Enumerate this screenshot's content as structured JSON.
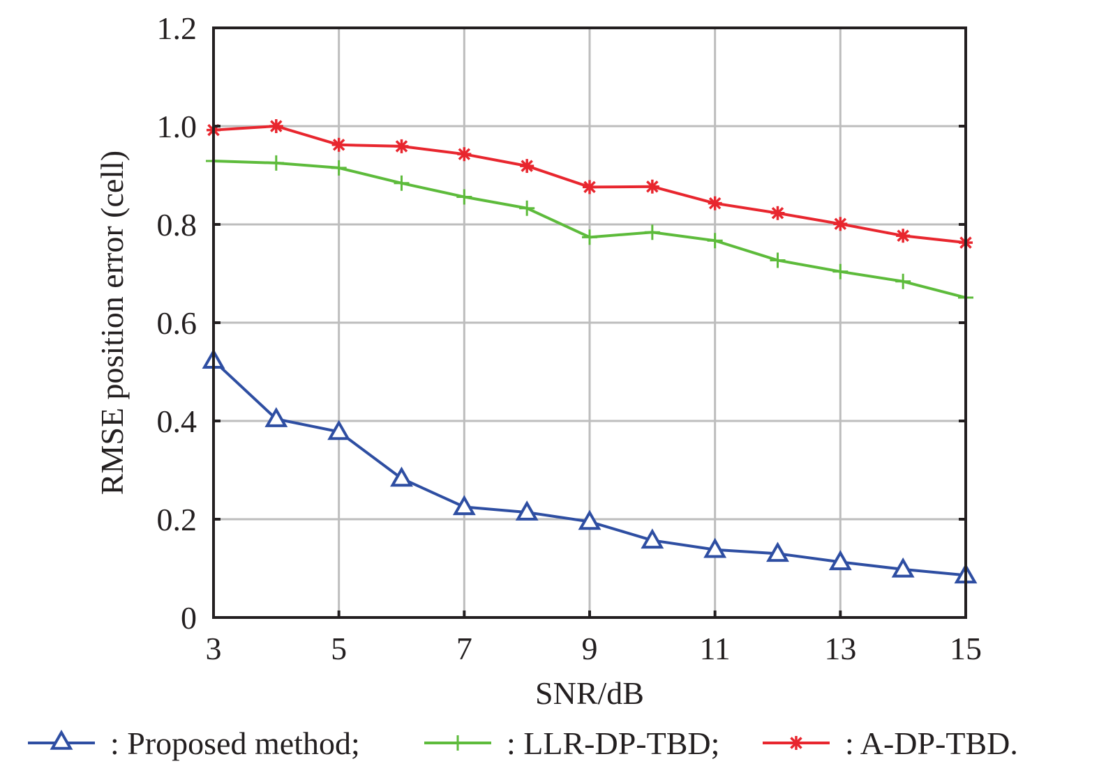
{
  "chart_data": {
    "type": "line",
    "title": "",
    "xlabel": "SNR/dB",
    "ylabel": "RMSE position error (cell)",
    "xlim": [
      3,
      15
    ],
    "ylim": [
      0,
      1.2
    ],
    "grid": true,
    "legend_position": "bottom",
    "x": [
      3,
      4,
      5,
      6,
      7,
      8,
      9,
      10,
      11,
      12,
      13,
      14,
      15
    ],
    "x_ticks": [
      3,
      5,
      7,
      9,
      11,
      13,
      15
    ],
    "x_tick_labels": [
      "3",
      "5",
      "7",
      "9",
      "11",
      "13",
      "15"
    ],
    "y_ticks": [
      0,
      0.2,
      0.4,
      0.6,
      0.8,
      1.0,
      1.2
    ],
    "y_tick_labels": [
      "0",
      "0.2",
      "0.4",
      "0.6",
      "0.8",
      "1.0",
      "1.2"
    ],
    "series": [
      {
        "name": "Proposed method",
        "legend_label": ": Proposed method;",
        "marker": "triangle",
        "color": "#2e4ea2",
        "values": [
          0.523,
          0.404,
          0.378,
          0.283,
          0.225,
          0.214,
          0.195,
          0.157,
          0.138,
          0.13,
          0.113,
          0.098,
          0.086
        ]
      },
      {
        "name": "LLR-DP-TBD",
        "legend_label": ": LLR-DP-TBD;",
        "marker": "plus",
        "color": "#5dbb3b",
        "values": [
          0.929,
          0.925,
          0.915,
          0.884,
          0.856,
          0.833,
          0.774,
          0.784,
          0.767,
          0.727,
          0.704,
          0.684,
          0.651
        ]
      },
      {
        "name": "A-DP-TBD",
        "legend_label": ": A-DP-TBD.",
        "marker": "asterisk",
        "color": "#e8262e",
        "values": [
          0.992,
          1.0,
          0.962,
          0.959,
          0.943,
          0.919,
          0.876,
          0.877,
          0.843,
          0.823,
          0.801,
          0.777,
          0.763
        ]
      }
    ]
  }
}
